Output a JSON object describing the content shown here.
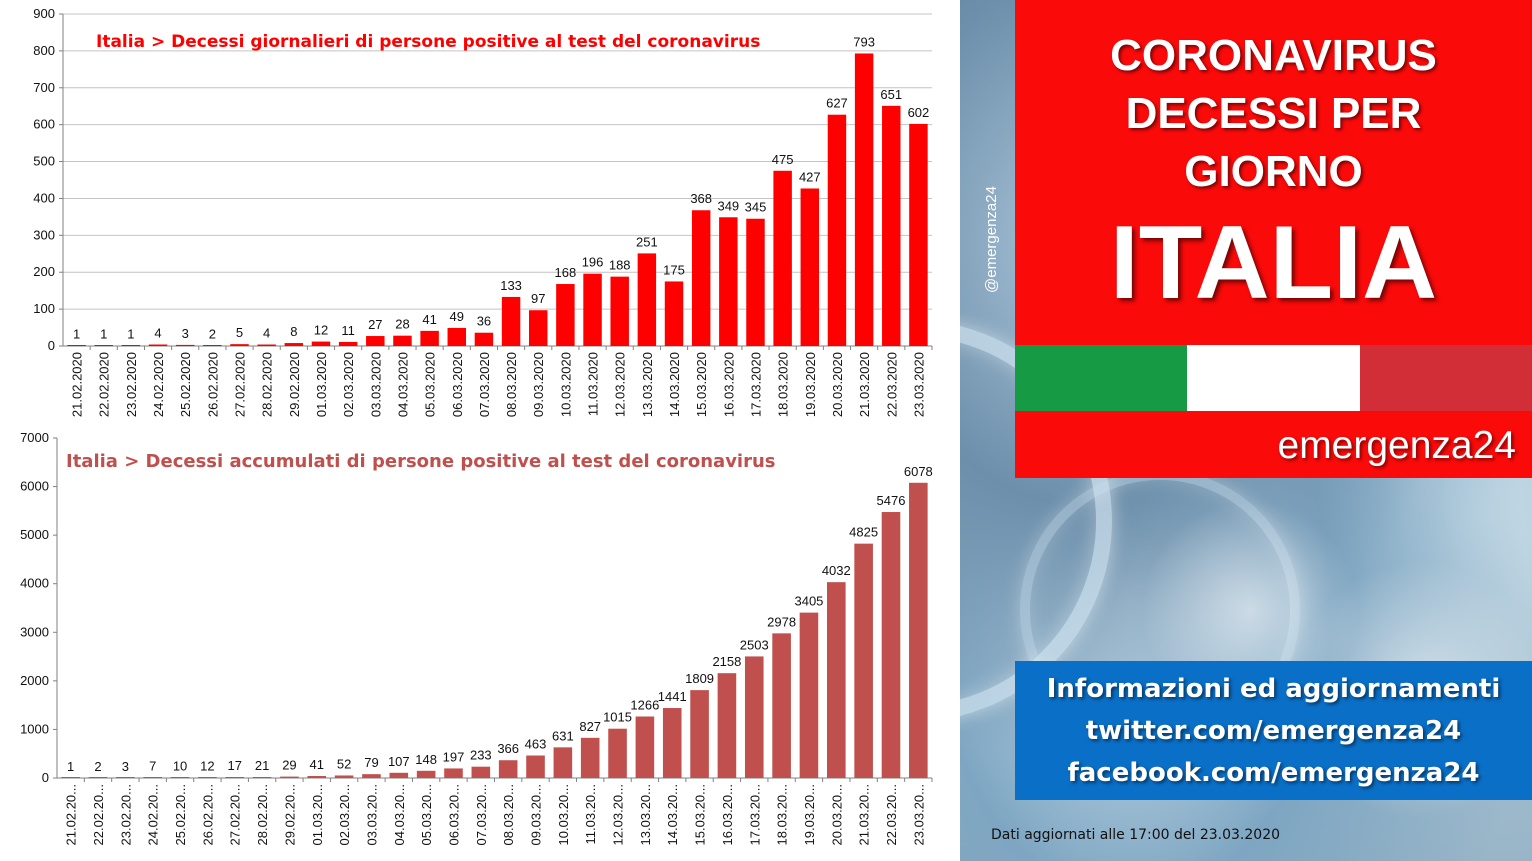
{
  "side_panel": {
    "title_lines": [
      "CORONAVIRUS",
      "DECESSI PER",
      "GIORNO"
    ],
    "country": "ITALIA",
    "brand": "emergenza24",
    "handle": "@emergenza24",
    "info_lines": [
      "Informazioni ed aggiornamenti",
      "twitter.com/emergenza24",
      "facebook.com/emergenza24"
    ],
    "update_note": "Dati aggiornati alle 17:00 del 23.03.2020",
    "flag_colors": [
      "#169b44",
      "#ffffff",
      "#d22e38"
    ]
  },
  "chart_data": [
    {
      "type": "bar",
      "title": "Italia > Decessi giornalieri di persone positive al test del coronavirus",
      "color": "#ff0000",
      "title_color": "#ff0000",
      "categories": [
        "21.02.2020",
        "22.02.2020",
        "23.02.2020",
        "24.02.2020",
        "25.02.2020",
        "26.02.2020",
        "27.02.2020",
        "28.02.2020",
        "29.02.2020",
        "01.03.2020",
        "02.03.2020",
        "03.03.2020",
        "04.03.2020",
        "05.03.2020",
        "06.03.2020",
        "07.03.2020",
        "08.03.2020",
        "09.03.2020",
        "10.03.2020",
        "11.03.2020",
        "12.03.2020",
        "13.03.2020",
        "14.03.2020",
        "15.03.2020",
        "16.03.2020",
        "17.03.2020",
        "18.03.2020",
        "19.03.2020",
        "20.03.2020",
        "21.03.2020",
        "22.03.2020",
        "23.03.2020"
      ],
      "values": [
        1,
        1,
        1,
        4,
        3,
        2,
        5,
        4,
        8,
        12,
        11,
        27,
        28,
        41,
        49,
        36,
        133,
        97,
        168,
        196,
        188,
        251,
        175,
        368,
        349,
        345,
        475,
        427,
        627,
        793,
        651,
        602
      ],
      "ylim": [
        0,
        900
      ],
      "yticks": [
        0,
        100,
        200,
        300,
        400,
        500,
        600,
        700,
        800,
        900
      ],
      "grid": true
    },
    {
      "type": "bar",
      "title": "Italia > Decessi accumulati di persone positive al test del coronavirus",
      "color": "#c0504d",
      "title_color": "#c0504d",
      "categories": [
        "21.02.20...",
        "22.02.20...",
        "23.02.20...",
        "24.02.20...",
        "25.02.20...",
        "26.02.20...",
        "27.02.20...",
        "28.02.20...",
        "29.02.20...",
        "01.03.20...",
        "02.03.20...",
        "03.03.20...",
        "04.03.20...",
        "05.03.20...",
        "06.03.20...",
        "07.03.20...",
        "08.03.20...",
        "09.03.20...",
        "10.03.20...",
        "11.03.20...",
        "12.03.20...",
        "13.03.20...",
        "14.03.20...",
        "15.03.20...",
        "16.03.20...",
        "17.03.20...",
        "18.03.20...",
        "19.03.20...",
        "20.03.20...",
        "21.03.20...",
        "22.03.20...",
        "23.03.20..."
      ],
      "values": [
        1,
        2,
        3,
        7,
        10,
        12,
        17,
        21,
        29,
        41,
        52,
        79,
        107,
        148,
        197,
        233,
        366,
        463,
        631,
        827,
        1015,
        1266,
        1441,
        1809,
        2158,
        2503,
        2978,
        3405,
        4032,
        4825,
        5476,
        6078
      ],
      "ylim": [
        0,
        7000
      ],
      "yticks": [
        0,
        1000,
        2000,
        3000,
        4000,
        5000,
        6000,
        7000
      ],
      "grid": false
    }
  ]
}
